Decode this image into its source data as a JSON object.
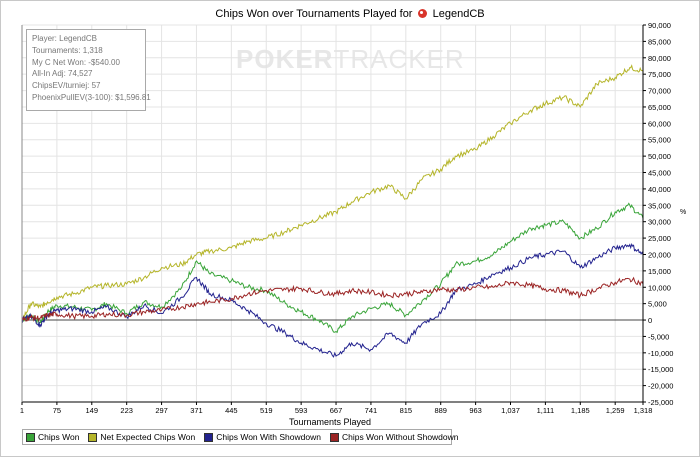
{
  "chart_data": {
    "type": "line",
    "title": "Chips Won over Tournaments Played for",
    "player_name": "LegendCB",
    "xlabel": "Tournaments Played",
    "ylabel": "%",
    "xlim": [
      1,
      1318
    ],
    "ylim": [
      -25000,
      90000
    ],
    "x_ticks": [
      1,
      75,
      149,
      223,
      297,
      371,
      445,
      519,
      593,
      667,
      741,
      815,
      889,
      963,
      1037,
      1111,
      1185,
      1259,
      1318
    ],
    "x_tick_labels": [
      "1",
      "75",
      "149",
      "223",
      "297",
      "371",
      "445",
      "519",
      "593",
      "667",
      "741",
      "815",
      "889",
      "963",
      "1,037",
      "1,111",
      "1,185",
      "1,259",
      "1,318"
    ],
    "y_ticks": [
      -25000,
      -20000,
      -15000,
      -10000,
      -5000,
      0,
      5000,
      10000,
      15000,
      20000,
      25000,
      30000,
      35000,
      40000,
      45000,
      50000,
      55000,
      60000,
      65000,
      70000,
      75000,
      80000,
      85000,
      90000
    ],
    "y_tick_labels": [
      "-25,000",
      "-20,000",
      "-15,000",
      "-10,000",
      "-5,000",
      "0",
      "5,000",
      "10,000",
      "15,000",
      "20,000",
      "25,000",
      "30,000",
      "35,000",
      "40,000",
      "45,000",
      "50,000",
      "55,000",
      "60,000",
      "65,000",
      "70,000",
      "75,000",
      "80,000",
      "85,000",
      "90,000"
    ],
    "grid": true,
    "series": [
      {
        "name": "Chips Won",
        "color": "#3aa53a",
        "x": [
          1,
          20,
          40,
          55,
          75,
          110,
          149,
          180,
          223,
          260,
          297,
          340,
          371,
          400,
          445,
          480,
          519,
          560,
          593,
          630,
          667,
          700,
          741,
          780,
          815,
          850,
          889,
          920,
          963,
          1000,
          1037,
          1080,
          1111,
          1150,
          1185,
          1220,
          1259,
          1290,
          1318
        ],
        "y": [
          0,
          1500,
          -800,
          2500,
          4500,
          4000,
          3000,
          5000,
          2000,
          5500,
          4000,
          10000,
          18000,
          14000,
          12000,
          10000,
          9000,
          5000,
          2500,
          0,
          -3500,
          1000,
          3500,
          5000,
          1500,
          6000,
          11000,
          17000,
          18000,
          20000,
          24000,
          28000,
          29000,
          30000,
          25000,
          28000,
          33000,
          35000,
          31000
        ]
      },
      {
        "name": "Net Expected Chips Won",
        "color": "#b5b52a",
        "x": [
          1,
          20,
          40,
          55,
          75,
          110,
          149,
          180,
          223,
          260,
          297,
          340,
          371,
          400,
          445,
          480,
          519,
          560,
          593,
          630,
          667,
          700,
          741,
          780,
          815,
          850,
          889,
          920,
          963,
          1000,
          1037,
          1080,
          1111,
          1150,
          1185,
          1220,
          1259,
          1290,
          1318
        ],
        "y": [
          0,
          5000,
          4000,
          5500,
          7000,
          8000,
          10000,
          10500,
          11000,
          13000,
          16000,
          17000,
          20000,
          21000,
          22000,
          24000,
          25000,
          27000,
          29000,
          31000,
          33000,
          36000,
          39000,
          41000,
          37000,
          43000,
          46000,
          50000,
          52000,
          56000,
          60000,
          64000,
          66000,
          68000,
          65000,
          72000,
          74000,
          77000,
          76000
        ]
      },
      {
        "name": "Chips Won With Showdown",
        "color": "#23238f",
        "x": [
          1,
          20,
          40,
          55,
          75,
          110,
          149,
          180,
          223,
          260,
          297,
          340,
          371,
          400,
          445,
          480,
          519,
          560,
          593,
          630,
          667,
          700,
          741,
          780,
          815,
          850,
          889,
          920,
          963,
          1000,
          1037,
          1080,
          1111,
          1150,
          1185,
          1220,
          1259,
          1290,
          1318
        ],
        "y": [
          0,
          1000,
          -1500,
          1500,
          3000,
          3500,
          2500,
          4000,
          1000,
          4500,
          2000,
          7000,
          13000,
          8000,
          6000,
          3000,
          -1000,
          -4000,
          -7000,
          -9000,
          -11000,
          -7000,
          -9000,
          -4000,
          -7000,
          -1000,
          2000,
          9000,
          11000,
          14000,
          16000,
          19000,
          20000,
          21000,
          16000,
          19000,
          22000,
          23000,
          20000
        ]
      },
      {
        "name": "Chips Won Without Showdown",
        "color": "#9b2424",
        "x": [
          1,
          20,
          40,
          55,
          75,
          110,
          149,
          180,
          223,
          260,
          297,
          340,
          371,
          400,
          445,
          480,
          519,
          560,
          593,
          630,
          667,
          700,
          741,
          780,
          815,
          850,
          889,
          920,
          963,
          1000,
          1037,
          1080,
          1111,
          1150,
          1185,
          1220,
          1259,
          1290,
          1318
        ],
        "y": [
          0,
          800,
          600,
          1500,
          1800,
          1200,
          1200,
          1800,
          1500,
          2500,
          3000,
          4000,
          5000,
          5500,
          6500,
          8000,
          9000,
          9300,
          9700,
          8500,
          8000,
          9000,
          8500,
          7500,
          8000,
          8500,
          9500,
          9000,
          10000,
          10000,
          11500,
          10500,
          9500,
          9000,
          7500,
          9500,
          11500,
          12500,
          11000
        ]
      }
    ]
  },
  "info": {
    "lines": [
      "Player: LegendCB",
      "Tournaments: 1,318",
      "My C Net Won: -$540.00",
      "All-In Adj: 74,527",
      "ChipsEV/turniej: 57",
      "PhoenixPullEV(3-100): $1,596.81"
    ]
  },
  "watermark": {
    "part1": "POKER",
    "part2": "TRACKER"
  },
  "legend_labels": [
    "Chips Won",
    "Net Expected Chips Won",
    "Chips Won With Showdown",
    "Chips Won Without Showdown"
  ],
  "colors": {
    "chips_won": "#3aa53a",
    "net_expected": "#b5b52a",
    "with_showdown": "#23238f",
    "without_showdown": "#9b2424"
  }
}
